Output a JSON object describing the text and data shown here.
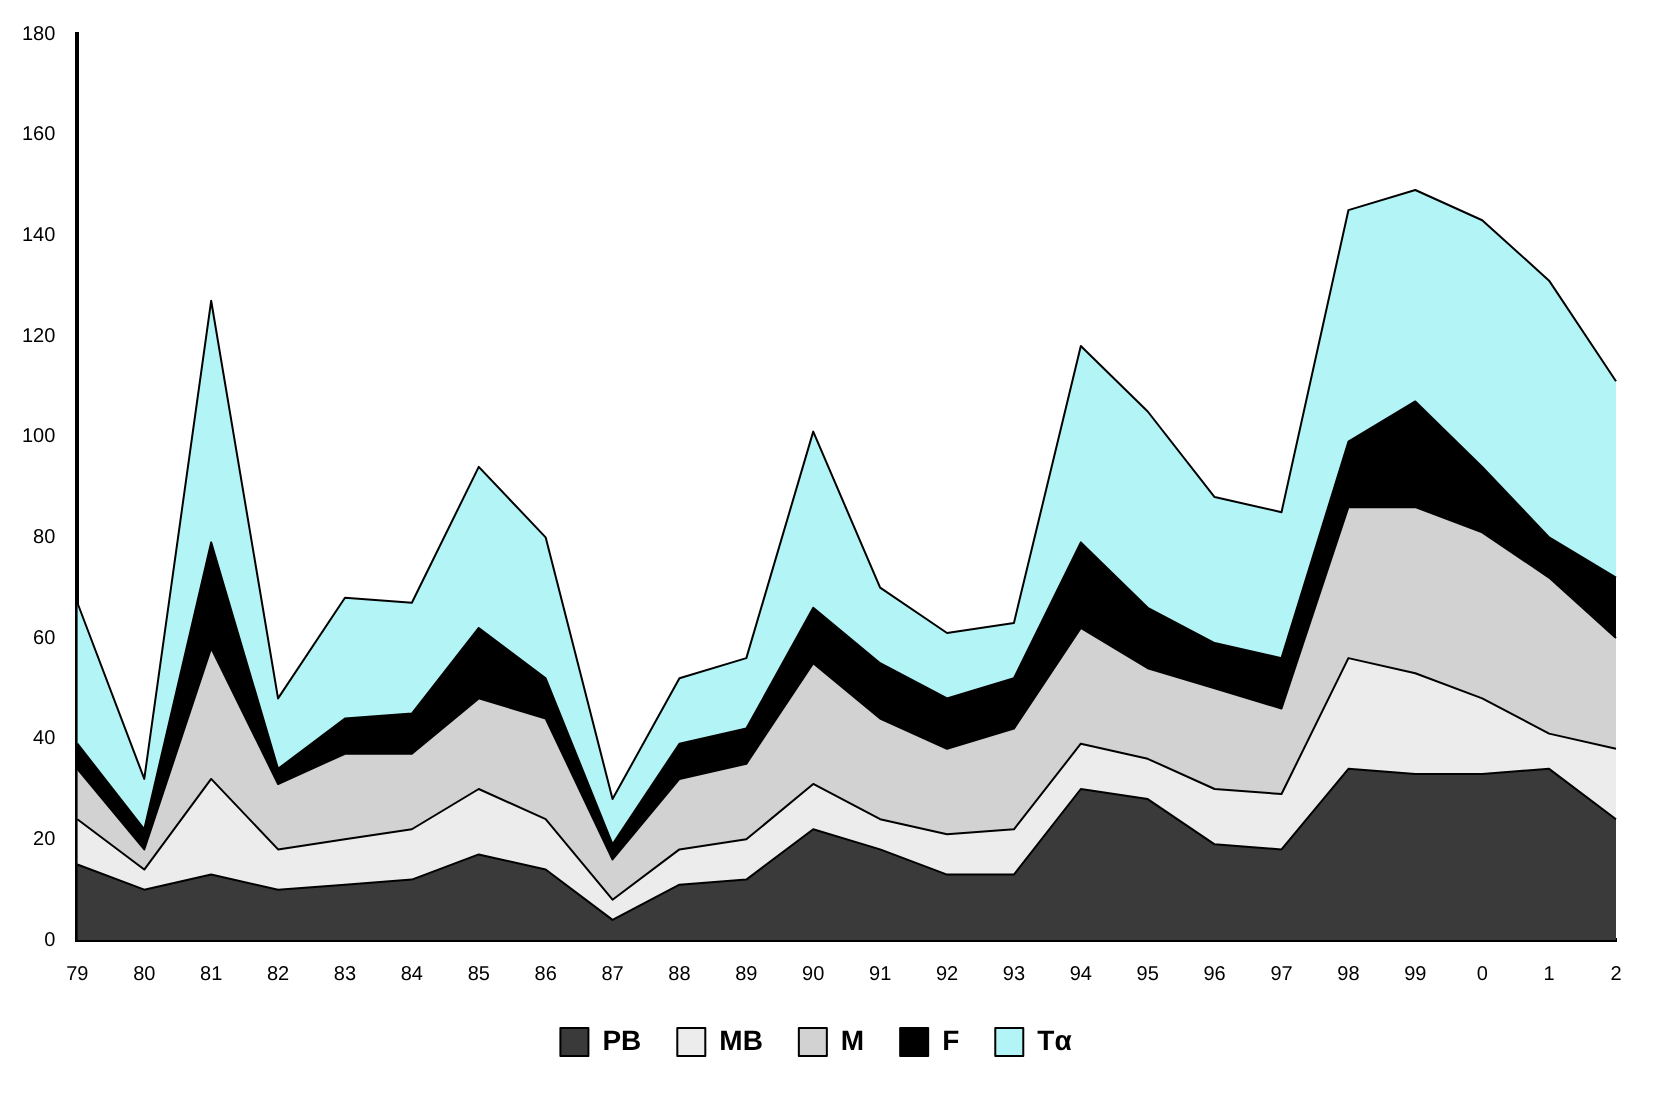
{
  "chart_data": {
    "type": "area",
    "stacked": true,
    "categories": [
      "79",
      "80",
      "81",
      "82",
      "83",
      "84",
      "85",
      "86",
      "87",
      "88",
      "89",
      "90",
      "91",
      "92",
      "93",
      "94",
      "95",
      "96",
      "97",
      "98",
      "99",
      "0",
      "1",
      "2"
    ],
    "series": [
      {
        "name": "PB",
        "color": "#3a3a3a",
        "values": [
          15,
          10,
          13,
          10,
          11,
          12,
          17,
          14,
          4,
          11,
          12,
          22,
          18,
          13,
          13,
          30,
          28,
          19,
          18,
          34,
          33,
          33,
          34,
          24
        ]
      },
      {
        "name": "MB",
        "color": "#ececec",
        "values": [
          9,
          4,
          19,
          8,
          9,
          10,
          13,
          10,
          4,
          7,
          8,
          9,
          6,
          8,
          9,
          9,
          8,
          11,
          11,
          22,
          20,
          15,
          7,
          14
        ]
      },
      {
        "name": "M",
        "color": "#d2d2d2",
        "values": [
          10,
          4,
          26,
          13,
          17,
          15,
          18,
          20,
          8,
          14,
          15,
          24,
          20,
          17,
          20,
          23,
          18,
          20,
          17,
          30,
          33,
          33,
          31,
          22
        ]
      },
      {
        "name": "F",
        "color": "#000000",
        "values": [
          5,
          4,
          21,
          3,
          7,
          8,
          14,
          8,
          3,
          7,
          7,
          11,
          11,
          10,
          10,
          17,
          12,
          9,
          10,
          13,
          21,
          13,
          8,
          12
        ]
      },
      {
        "name": "Tα",
        "color": "#b3f5f7",
        "values": [
          28,
          10,
          48,
          14,
          24,
          22,
          32,
          28,
          9,
          13,
          14,
          35,
          15,
          13,
          11,
          39,
          39,
          29,
          29,
          46,
          42,
          49,
          51,
          39
        ]
      }
    ],
    "ylim": [
      0,
      180
    ],
    "yticks": [
      0,
      20,
      40,
      60,
      80,
      100,
      120,
      140,
      160,
      180
    ],
    "grid": false,
    "legend": "bottom"
  }
}
